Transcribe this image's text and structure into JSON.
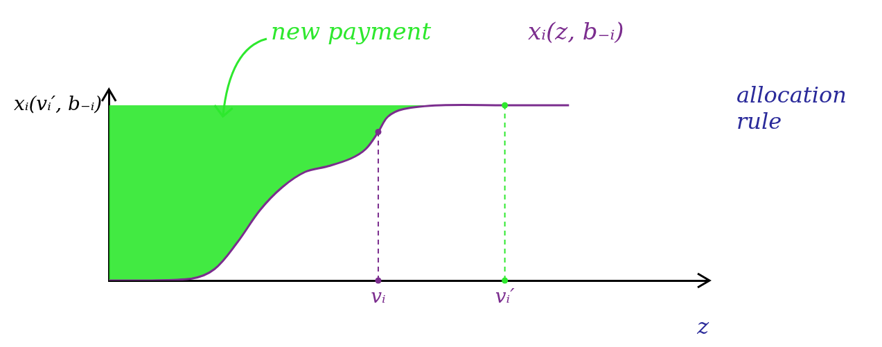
{
  "chart_data": {
    "type": "line",
    "x": [
      0,
      0.63,
      1.38,
      1.76,
      2.14,
      2.52,
      2.89,
      3.27,
      3.65,
      4.03,
      4.28,
      4.49,
      4.65,
      4.91,
      5.53,
      6.6,
      7.67
    ],
    "values": [
      0,
      0,
      0.01,
      0.06,
      0.2,
      0.37,
      0.49,
      0.57,
      0.6,
      0.64,
      0.69,
      0.78,
      0.86,
      0.9,
      0.92,
      0.92,
      0.92
    ],
    "color": "#7b2d8e",
    "xlim": [
      0,
      10
    ],
    "ylim": [
      0,
      1
    ],
    "xticks": [
      {
        "value": 4.49,
        "label": "vᵢ"
      },
      {
        "value": 6.6,
        "label": "vᵢ′"
      }
    ],
    "yticks": [
      {
        "value": 0.92,
        "label": "xᵢ(vᵢ′, b₋ᵢ)"
      }
    ],
    "x_label": "z",
    "annotations": [
      {
        "text": "new payment",
        "color": "#2ee82e"
      },
      {
        "text": "xᵢ(z, b₋ᵢ)",
        "color": "#7b2d8e"
      },
      {
        "text": "allocation rule",
        "color": "#2a2a9a"
      }
    ],
    "grid": false
  }
}
